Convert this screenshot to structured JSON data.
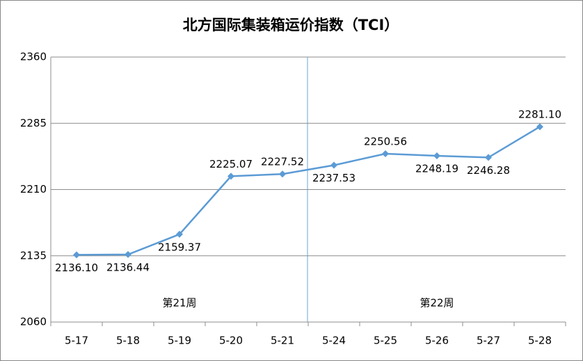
{
  "chart_data": {
    "type": "line",
    "title": "北方国际集装箱运价指数（TCI）",
    "categories": [
      "5-17",
      "5-18",
      "5-19",
      "5-20",
      "5-21",
      "5-24",
      "5-25",
      "5-26",
      "5-27",
      "5-28"
    ],
    "series": [
      {
        "name": "TCI",
        "color": "#5b9bd5",
        "values": [
          2136.1,
          2136.44,
          2159.37,
          2225.07,
          2227.52,
          2237.53,
          2250.56,
          2248.19,
          2246.28,
          2281.1
        ],
        "value_labels": [
          "2136.10",
          "2136.44",
          "2159.37",
          "2225.07",
          "2227.52",
          "2237.53",
          "2250.56",
          "2248.19",
          "2246.28",
          "2281.10"
        ]
      }
    ],
    "ylim": [
      2060,
      2360
    ],
    "yticks": [
      2060,
      2135,
      2210,
      2285,
      2360
    ],
    "grid": true,
    "annotations": [
      "第21周",
      "第22周"
    ]
  }
}
